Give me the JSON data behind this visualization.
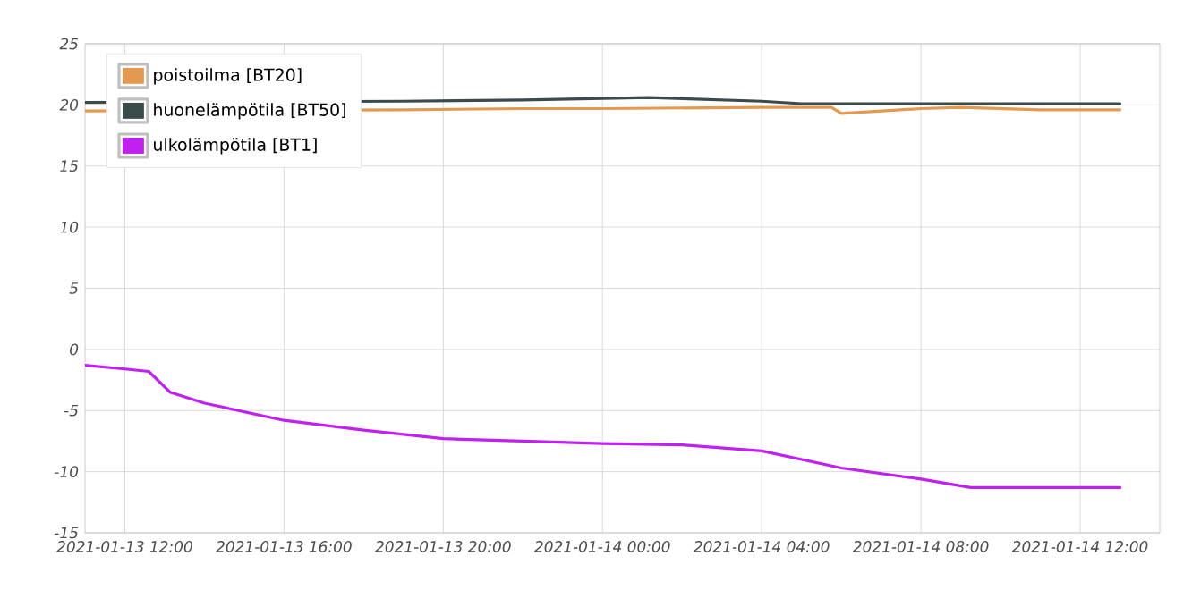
{
  "chart_data": {
    "type": "line",
    "xlim": [
      "2021-01-13T11:00",
      "2021-01-14T14:00"
    ],
    "xticks": [
      {
        "value": "2021-01-13T12:00",
        "label": "2021-01-13 12:00"
      },
      {
        "value": "2021-01-13T16:00",
        "label": "2021-01-13 16:00"
      },
      {
        "value": "2021-01-13T20:00",
        "label": "2021-01-13 20:00"
      },
      {
        "value": "2021-01-14T00:00",
        "label": "2021-01-14 00:00"
      },
      {
        "value": "2021-01-14T04:00",
        "label": "2021-01-14 04:00"
      },
      {
        "value": "2021-01-14T08:00",
        "label": "2021-01-14 08:00"
      },
      {
        "value": "2021-01-14T12:00",
        "label": "2021-01-14 12:00"
      }
    ],
    "ylim": [
      -15,
      25
    ],
    "yticks": [
      -15,
      -10,
      -5,
      0,
      5,
      10,
      15,
      20,
      25
    ],
    "grid": true,
    "legend": "top left",
    "marker": "none",
    "line_style": "solid",
    "series": [
      {
        "name": "poistoilma [BT20]",
        "color": "#e39a50",
        "x": [
          "2021-01-13T11:00",
          "2021-01-13T19:00",
          "2021-01-13T22:00",
          "2021-01-14T00:00",
          "2021-01-14T04:00",
          "2021-01-14T05:45",
          "2021-01-14T06:00",
          "2021-01-14T08:00",
          "2021-01-14T09:00",
          "2021-01-14T11:00",
          "2021-01-14T13:00"
        ],
        "values": [
          19.5,
          19.6,
          19.7,
          19.7,
          19.8,
          19.8,
          19.3,
          19.7,
          19.8,
          19.6,
          19.6
        ]
      },
      {
        "name": "huonelämpötila [BT50]",
        "color": "#3b4a4a",
        "x": [
          "2021-01-13T11:00",
          "2021-01-13T19:00",
          "2021-01-13T22:00",
          "2021-01-14T01:10",
          "2021-01-14T04:00",
          "2021-01-14T05:00",
          "2021-01-14T13:00"
        ],
        "values": [
          20.2,
          20.3,
          20.4,
          20.6,
          20.3,
          20.1,
          20.1
        ]
      },
      {
        "name": "ulkolämpötila [BT1]",
        "color": "#c020f0",
        "x": [
          "2021-01-13T11:00",
          "2021-01-13T12:00",
          "2021-01-13T12:36",
          "2021-01-13T13:08",
          "2021-01-13T14:00",
          "2021-01-13T16:00",
          "2021-01-13T18:00",
          "2021-01-13T20:00",
          "2021-01-13T22:00",
          "2021-01-14T00:00",
          "2021-01-14T02:00",
          "2021-01-14T04:00",
          "2021-01-14T06:00",
          "2021-01-14T08:00",
          "2021-01-14T09:15",
          "2021-01-14T13:00"
        ],
        "values": [
          -1.3,
          -1.6,
          -1.8,
          -3.5,
          -4.4,
          -5.8,
          -6.6,
          -7.3,
          -7.5,
          -7.7,
          -7.8,
          -8.3,
          -9.7,
          -10.6,
          -11.3,
          -11.3
        ]
      }
    ]
  }
}
